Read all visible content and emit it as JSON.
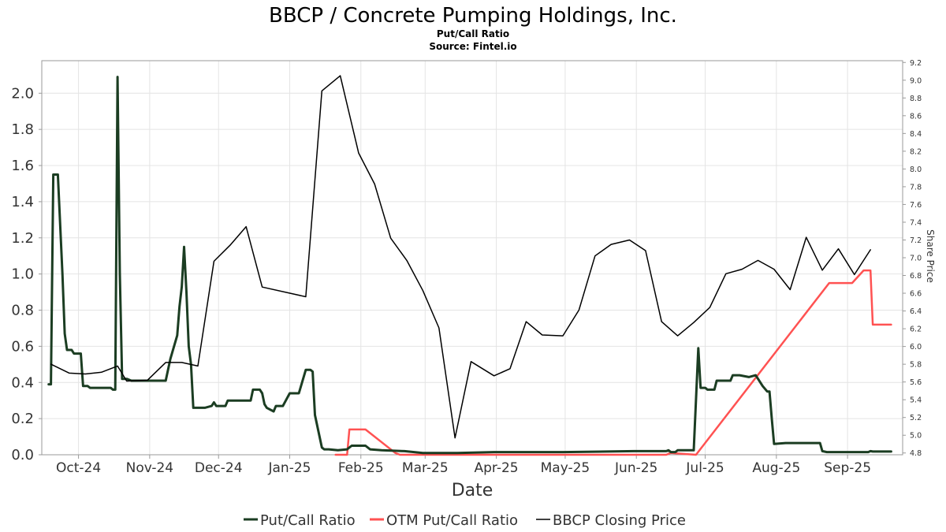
{
  "chart_data": {
    "type": "line",
    "title": "BBCP / Concrete Pumping Holdings, Inc.",
    "subtitle": "Put/Call Ratio",
    "source": "Source: Fintel.io",
    "xlabel": "Date",
    "ylabel_right": "Share Price",
    "x_ticks": [
      "Oct-24",
      "Nov-24",
      "Dec-24",
      "Jan-25",
      "Feb-25",
      "Mar-25",
      "Apr-25",
      "May-25",
      "Jun-25",
      "Jul-25",
      "Aug-25",
      "Sep-25"
    ],
    "y_left_ticks": [
      "0.0",
      "0.2",
      "0.4",
      "0.6",
      "0.8",
      "1.0",
      "1.2",
      "1.4",
      "1.6",
      "1.8",
      "2.0"
    ],
    "y_right_ticks": [
      "4.8",
      "5.0",
      "5.2",
      "5.4",
      "5.6",
      "5.8",
      "6.0",
      "6.2",
      "6.4",
      "6.6",
      "6.8",
      "7.0",
      "7.2",
      "7.4",
      "7.6",
      "7.8",
      "8.0",
      "8.2",
      "8.4",
      "8.6",
      "8.8",
      "9.0",
      "9.2"
    ],
    "ylim_left": [
      0,
      2.18
    ],
    "ylim_right": [
      4.78,
      9.22
    ],
    "xlim": [
      "2024-09-15",
      "2025-09-25"
    ],
    "grid": true,
    "legend_position": "bottom",
    "series": [
      {
        "name": "Put/Call Ratio",
        "axis": "left",
        "color": "#1b3d22",
        "points": [
          [
            "2024-09-18",
            0.39
          ],
          [
            "2024-09-19",
            0.39
          ],
          [
            "2024-09-20",
            1.55
          ],
          [
            "2024-09-22",
            1.55
          ],
          [
            "2024-09-24",
            1.0
          ],
          [
            "2024-09-25",
            0.67
          ],
          [
            "2024-09-26",
            0.58
          ],
          [
            "2024-09-28",
            0.58
          ],
          [
            "2024-09-29",
            0.56
          ],
          [
            "2024-10-02",
            0.56
          ],
          [
            "2024-10-03",
            0.38
          ],
          [
            "2024-10-05",
            0.38
          ],
          [
            "2024-10-06",
            0.37
          ],
          [
            "2024-10-10",
            0.37
          ],
          [
            "2024-10-15",
            0.37
          ],
          [
            "2024-10-16",
            0.36
          ],
          [
            "2024-10-17",
            0.36
          ],
          [
            "2024-10-18",
            2.09
          ],
          [
            "2024-10-19",
            1.0
          ],
          [
            "2024-10-20",
            0.42
          ],
          [
            "2024-10-22",
            0.42
          ],
          [
            "2024-10-24",
            0.41
          ],
          [
            "2024-10-28",
            0.41
          ],
          [
            "2024-11-05",
            0.41
          ],
          [
            "2024-11-08",
            0.41
          ],
          [
            "2024-11-10",
            0.53
          ],
          [
            "2024-11-13",
            0.66
          ],
          [
            "2024-11-14",
            0.82
          ],
          [
            "2024-11-15",
            0.93
          ],
          [
            "2024-11-16",
            1.15
          ],
          [
            "2024-11-17",
            0.9
          ],
          [
            "2024-11-18",
            0.6
          ],
          [
            "2024-11-19",
            0.5
          ],
          [
            "2024-11-20",
            0.26
          ],
          [
            "2024-11-25",
            0.26
          ],
          [
            "2024-11-28",
            0.27
          ],
          [
            "2024-11-29",
            0.29
          ],
          [
            "2024-11-30",
            0.27
          ],
          [
            "2024-12-04",
            0.27
          ],
          [
            "2024-12-05",
            0.3
          ],
          [
            "2024-12-12",
            0.3
          ],
          [
            "2024-12-15",
            0.3
          ],
          [
            "2024-12-16",
            0.36
          ],
          [
            "2024-12-19",
            0.36
          ],
          [
            "2024-12-20",
            0.34
          ],
          [
            "2024-12-21",
            0.28
          ],
          [
            "2024-12-22",
            0.26
          ],
          [
            "2024-12-25",
            0.24
          ],
          [
            "2024-12-26",
            0.27
          ],
          [
            "2024-12-29",
            0.27
          ],
          [
            "2025-01-01",
            0.34
          ],
          [
            "2025-01-05",
            0.34
          ],
          [
            "2025-01-08",
            0.47
          ],
          [
            "2025-01-10",
            0.47
          ],
          [
            "2025-01-11",
            0.46
          ],
          [
            "2025-01-12",
            0.22
          ],
          [
            "2025-01-15",
            0.04
          ],
          [
            "2025-01-16",
            0.03
          ],
          [
            "2025-01-18",
            0.03
          ],
          [
            "2025-01-22",
            0.025
          ],
          [
            "2025-01-26",
            0.03
          ],
          [
            "2025-01-28",
            0.05
          ],
          [
            "2025-01-31",
            0.05
          ],
          [
            "2025-02-03",
            0.05
          ],
          [
            "2025-02-05",
            0.03
          ],
          [
            "2025-02-10",
            0.025
          ],
          [
            "2025-02-20",
            0.02
          ],
          [
            "2025-02-28",
            0.01
          ],
          [
            "2025-03-15",
            0.01
          ],
          [
            "2025-03-31",
            0.015
          ],
          [
            "2025-04-30",
            0.015
          ],
          [
            "2025-05-31",
            0.02
          ],
          [
            "2025-06-14",
            0.02
          ],
          [
            "2025-06-15",
            0.025
          ],
          [
            "2025-06-16",
            0.015
          ],
          [
            "2025-06-18",
            0.015
          ],
          [
            "2025-06-19",
            0.025
          ],
          [
            "2025-06-25",
            0.025
          ],
          [
            "2025-06-26",
            0.025
          ],
          [
            "2025-06-28",
            0.59
          ],
          [
            "2025-06-29",
            0.37
          ],
          [
            "2025-07-01",
            0.37
          ],
          [
            "2025-07-02",
            0.36
          ],
          [
            "2025-07-05",
            0.36
          ],
          [
            "2025-07-06",
            0.41
          ],
          [
            "2025-07-12",
            0.41
          ],
          [
            "2025-07-13",
            0.44
          ],
          [
            "2025-07-16",
            0.44
          ],
          [
            "2025-07-20",
            0.43
          ],
          [
            "2025-07-23",
            0.44
          ],
          [
            "2025-07-26",
            0.38
          ],
          [
            "2025-07-28",
            0.35
          ],
          [
            "2025-07-29",
            0.35
          ],
          [
            "2025-07-30",
            0.2
          ],
          [
            "2025-07-31",
            0.06
          ],
          [
            "2025-08-05",
            0.065
          ],
          [
            "2025-08-15",
            0.065
          ],
          [
            "2025-08-20",
            0.065
          ],
          [
            "2025-08-21",
            0.02
          ],
          [
            "2025-08-23",
            0.015
          ],
          [
            "2025-09-01",
            0.015
          ],
          [
            "2025-09-10",
            0.015
          ],
          [
            "2025-09-11",
            0.02
          ],
          [
            "2025-09-12",
            0.018
          ],
          [
            "2025-09-20",
            0.018
          ]
        ]
      },
      {
        "name": "OTM Put/Call Ratio",
        "axis": "left",
        "color": "#ff5252",
        "points": [
          [
            "2025-01-21",
            0.0
          ],
          [
            "2025-01-26",
            0.0
          ],
          [
            "2025-01-27",
            0.14
          ],
          [
            "2025-02-03",
            0.14
          ],
          [
            "2025-02-16",
            0.01
          ],
          [
            "2025-02-18",
            0.0
          ],
          [
            "2025-06-10",
            0.0
          ],
          [
            "2025-06-14",
            0.0
          ],
          [
            "2025-06-16",
            0.01
          ],
          [
            "2025-06-27",
            0.0
          ],
          [
            "2025-08-24",
            0.95
          ],
          [
            "2025-09-03",
            0.95
          ],
          [
            "2025-09-08",
            1.02
          ],
          [
            "2025-09-11",
            1.02
          ],
          [
            "2025-09-12",
            0.72
          ],
          [
            "2025-09-20",
            0.72
          ]
        ]
      },
      {
        "name": "BBCP Closing Price",
        "axis": "right",
        "color": "#000000",
        "points": [
          [
            "2024-09-19",
            5.8
          ],
          [
            "2024-09-27",
            5.7
          ],
          [
            "2024-10-04",
            5.69
          ],
          [
            "2024-10-11",
            5.71
          ],
          [
            "2024-10-18",
            5.78
          ],
          [
            "2024-10-22",
            5.61
          ],
          [
            "2024-10-31",
            5.62
          ],
          [
            "2024-11-08",
            5.82
          ],
          [
            "2024-11-15",
            5.82
          ],
          [
            "2024-11-22",
            5.78
          ],
          [
            "2024-11-29",
            6.96
          ],
          [
            "2024-12-06",
            7.14
          ],
          [
            "2024-12-13",
            7.35
          ],
          [
            "2024-12-20",
            6.67
          ],
          [
            "2025-01-08",
            6.56
          ],
          [
            "2025-01-15",
            8.88
          ],
          [
            "2025-01-23",
            9.05
          ],
          [
            "2025-01-31",
            8.18
          ],
          [
            "2025-02-07",
            7.83
          ],
          [
            "2025-02-14",
            7.22
          ],
          [
            "2025-02-21",
            6.97
          ],
          [
            "2025-02-28",
            6.63
          ],
          [
            "2025-03-07",
            6.21
          ],
          [
            "2025-03-14",
            4.97
          ],
          [
            "2025-03-21",
            5.83
          ],
          [
            "2025-03-31",
            5.67
          ],
          [
            "2025-04-07",
            5.75
          ],
          [
            "2025-04-14",
            6.28
          ],
          [
            "2025-04-21",
            6.13
          ],
          [
            "2025-04-30",
            6.12
          ],
          [
            "2025-05-07",
            6.41
          ],
          [
            "2025-05-14",
            7.02
          ],
          [
            "2025-05-21",
            7.15
          ],
          [
            "2025-05-29",
            7.2
          ],
          [
            "2025-06-05",
            7.08
          ],
          [
            "2025-06-12",
            6.28
          ],
          [
            "2025-06-19",
            6.12
          ],
          [
            "2025-06-26",
            6.27
          ],
          [
            "2025-07-03",
            6.44
          ],
          [
            "2025-07-10",
            6.82
          ],
          [
            "2025-07-17",
            6.87
          ],
          [
            "2025-07-24",
            6.97
          ],
          [
            "2025-07-31",
            6.87
          ],
          [
            "2025-08-07",
            6.64
          ],
          [
            "2025-08-14",
            7.23
          ],
          [
            "2025-08-21",
            6.86
          ],
          [
            "2025-08-28",
            7.1
          ],
          [
            "2025-09-04",
            6.81
          ],
          [
            "2025-09-11",
            7.09
          ]
        ]
      }
    ]
  }
}
